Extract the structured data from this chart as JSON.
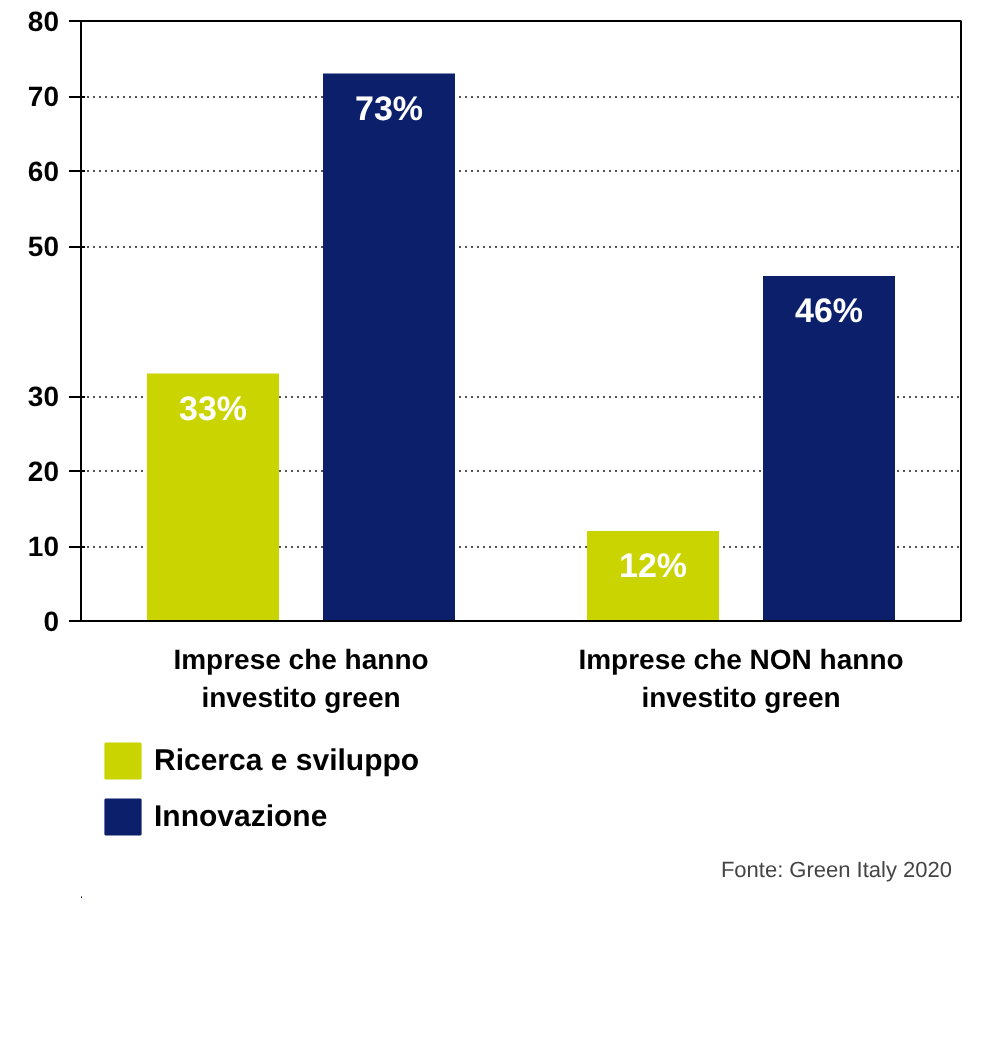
{
  "chart_data": {
    "type": "bar",
    "categories": [
      "Imprese che hanno\ninvestito green",
      "Imprese che NON hanno\ninvestito green"
    ],
    "series": [
      {
        "name": "Ricerca e sviluppo",
        "color": "#c9d400",
        "values": [
          33,
          12
        ],
        "value_labels": [
          "33%",
          "12%"
        ]
      },
      {
        "name": "Innovazione",
        "color": "#0b1f6b",
        "values": [
          73,
          46
        ],
        "value_labels": [
          "73%",
          "46%"
        ]
      }
    ],
    "ylim": [
      0,
      80
    ],
    "yticks": [
      0,
      10,
      20,
      30,
      50,
      60,
      70,
      80
    ],
    "grid": "y",
    "legend": "bottom",
    "annotations": [
      "Fonte: Green Italy 2020"
    ]
  }
}
